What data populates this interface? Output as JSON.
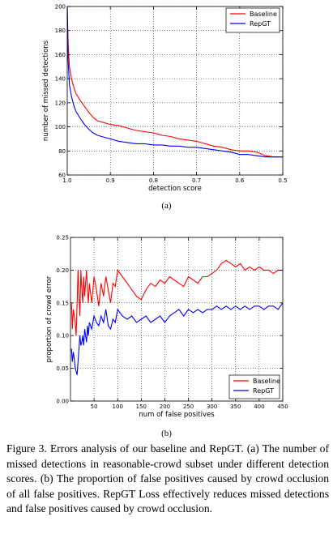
{
  "chart_data": [
    {
      "type": "line",
      "xlabel": "detection score",
      "ylabel": "number of missed detections",
      "xlim": [
        1.0,
        0.5
      ],
      "ylim": [
        60,
        200
      ],
      "x_ticks": [
        "1.0",
        "0.9",
        "0.8",
        "0.7",
        "0.6",
        "0.5"
      ],
      "x_tick_values": [
        1.0,
        0.9,
        0.8,
        0.7,
        0.6,
        0.5
      ],
      "y_ticks": [
        "60",
        "80",
        "100",
        "120",
        "140",
        "160",
        "180",
        "200"
      ],
      "y_tick_values": [
        60,
        80,
        100,
        120,
        140,
        160,
        180,
        200
      ],
      "grid": true,
      "legend_position": "top-right",
      "series": [
        {
          "name": "Baseline",
          "color": "#ff0000",
          "x": [
            1.0,
            0.998,
            0.995,
            0.99,
            0.985,
            0.98,
            0.97,
            0.96,
            0.95,
            0.94,
            0.93,
            0.92,
            0.91,
            0.9,
            0.88,
            0.86,
            0.84,
            0.82,
            0.8,
            0.78,
            0.76,
            0.74,
            0.72,
            0.7,
            0.68,
            0.66,
            0.64,
            0.62,
            0.6,
            0.58,
            0.56,
            0.54,
            0.52,
            0.5
          ],
          "values": [
            200,
            170,
            150,
            140,
            133,
            128,
            122,
            117,
            112,
            108,
            105,
            104,
            103,
            102,
            101,
            99,
            97,
            96,
            95,
            93,
            92,
            90,
            89,
            88,
            86,
            84,
            83,
            81,
            80,
            80,
            79,
            76,
            75,
            75
          ]
        },
        {
          "name": "RepGT",
          "color": "#0000ff",
          "x": [
            1.0,
            0.998,
            0.995,
            0.99,
            0.985,
            0.98,
            0.97,
            0.96,
            0.95,
            0.94,
            0.93,
            0.92,
            0.9,
            0.88,
            0.86,
            0.84,
            0.82,
            0.8,
            0.78,
            0.76,
            0.74,
            0.72,
            0.7,
            0.68,
            0.66,
            0.64,
            0.62,
            0.6,
            0.58,
            0.56,
            0.54,
            0.52,
            0.5
          ],
          "values": [
            200,
            155,
            135,
            125,
            118,
            113,
            107,
            102,
            98,
            95,
            93,
            92,
            90,
            88,
            87,
            86,
            86,
            85,
            85,
            84,
            84,
            83,
            83,
            82,
            81,
            80,
            79,
            77,
            77,
            76,
            75,
            75,
            75
          ]
        }
      ]
    },
    {
      "type": "line",
      "xlabel": "num of false positives",
      "ylabel": "proportion of crowd error",
      "xlim": [
        0,
        450
      ],
      "ylim": [
        0,
        0.25
      ],
      "x_ticks": [
        "50",
        "100",
        "150",
        "200",
        "250",
        "300",
        "350",
        "400",
        "450"
      ],
      "x_tick_values": [
        50,
        100,
        150,
        200,
        250,
        300,
        350,
        400,
        450
      ],
      "y_ticks": [
        "0.00",
        "0.05",
        "0.10",
        "0.15",
        "0.20",
        "0.25"
      ],
      "y_tick_values": [
        0,
        0.05,
        0.1,
        0.15,
        0.2,
        0.25
      ],
      "grid": true,
      "legend_position": "bottom-right",
      "series": [
        {
          "name": "Baseline",
          "color": "#ff0000",
          "x": [
            2,
            4,
            6,
            8,
            10,
            12,
            14,
            16,
            18,
            20,
            22,
            24,
            26,
            28,
            30,
            32,
            34,
            36,
            38,
            40,
            45,
            50,
            55,
            60,
            65,
            70,
            75,
            80,
            85,
            90,
            95,
            100,
            110,
            120,
            130,
            140,
            150,
            160,
            170,
            180,
            190,
            200,
            210,
            220,
            230,
            240,
            250,
            260,
            270,
            280,
            290,
            300,
            310,
            320,
            330,
            340,
            350,
            360,
            370,
            380,
            390,
            400,
            410,
            420,
            430,
            440,
            450
          ],
          "values": [
            0.15,
            0.11,
            0.14,
            0.13,
            0.12,
            0.1,
            0.15,
            0.2,
            0.16,
            0.13,
            0.2,
            0.17,
            0.15,
            0.19,
            0.16,
            0.18,
            0.2,
            0.17,
            0.15,
            0.18,
            0.15,
            0.19,
            0.17,
            0.145,
            0.18,
            0.16,
            0.19,
            0.17,
            0.15,
            0.18,
            0.175,
            0.2,
            0.19,
            0.18,
            0.17,
            0.16,
            0.155,
            0.17,
            0.18,
            0.175,
            0.185,
            0.18,
            0.19,
            0.185,
            0.18,
            0.175,
            0.19,
            0.185,
            0.18,
            0.19,
            0.19,
            0.195,
            0.2,
            0.21,
            0.215,
            0.21,
            0.205,
            0.21,
            0.2,
            0.205,
            0.2,
            0.205,
            0.2,
            0.2,
            0.195,
            0.2,
            0.2
          ]
        },
        {
          "name": "RepGT",
          "color": "#0000ff",
          "x": [
            2,
            4,
            6,
            8,
            10,
            12,
            14,
            16,
            18,
            20,
            22,
            24,
            26,
            28,
            30,
            32,
            34,
            36,
            38,
            40,
            45,
            50,
            55,
            60,
            65,
            70,
            75,
            80,
            85,
            90,
            95,
            100,
            110,
            120,
            130,
            140,
            150,
            160,
            170,
            180,
            190,
            200,
            210,
            220,
            230,
            240,
            250,
            260,
            270,
            280,
            290,
            300,
            310,
            320,
            330,
            340,
            350,
            360,
            370,
            380,
            390,
            400,
            410,
            420,
            430,
            440,
            450
          ],
          "values": [
            0.08,
            0.06,
            0.075,
            0.065,
            0.05,
            0.045,
            0.04,
            0.06,
            0.08,
            0.1,
            0.085,
            0.09,
            0.1,
            0.085,
            0.11,
            0.1,
            0.09,
            0.115,
            0.1,
            0.12,
            0.11,
            0.13,
            0.12,
            0.115,
            0.13,
            0.12,
            0.14,
            0.115,
            0.11,
            0.125,
            0.12,
            0.14,
            0.13,
            0.125,
            0.13,
            0.12,
            0.125,
            0.13,
            0.12,
            0.125,
            0.13,
            0.12,
            0.13,
            0.135,
            0.14,
            0.13,
            0.14,
            0.135,
            0.14,
            0.135,
            0.14,
            0.14,
            0.145,
            0.14,
            0.145,
            0.14,
            0.145,
            0.14,
            0.145,
            0.14,
            0.145,
            0.145,
            0.14,
            0.145,
            0.145,
            0.14,
            0.15
          ]
        }
      ]
    }
  ],
  "subfigure_labels": {
    "a": "(a)",
    "b": "(b)"
  },
  "caption": "Figure 3. Errors analysis of our baseline and RepGT. (a) The number of missed detections in reasonable-crowd subset under different detection scores. (b) The proportion of false positives caused by crowd occlusion of all false positives. RepGT Loss effectively reduces missed detections and false positives caused by crowd occlusion."
}
